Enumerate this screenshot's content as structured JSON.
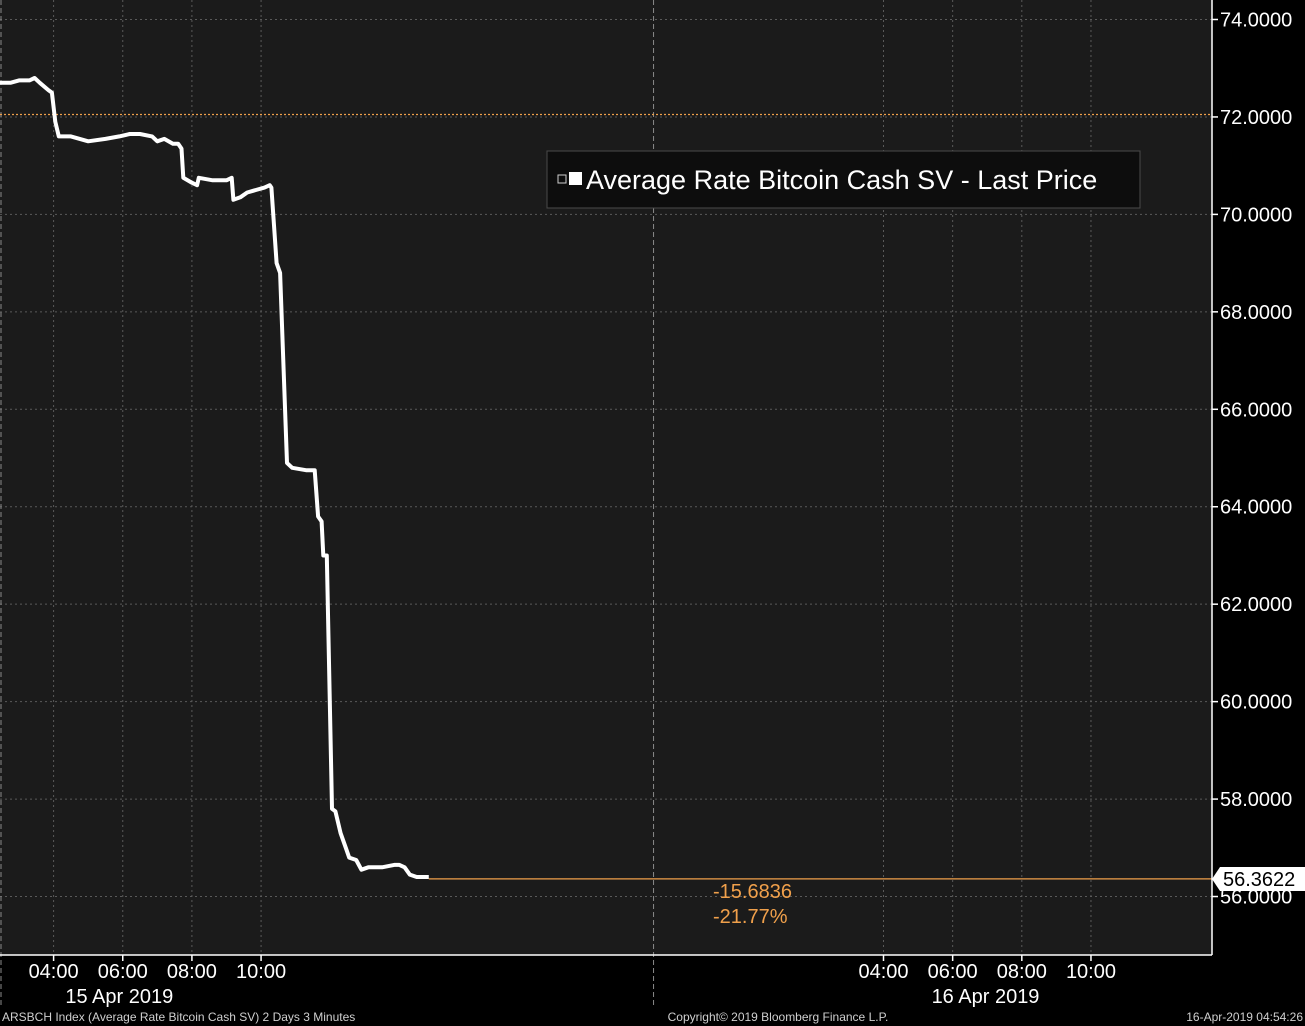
{
  "chart_data": {
    "type": "line",
    "title": "Average Rate Bitcoin Cash SV - Last Price",
    "legend": {
      "label": "Average Rate Bitcoin Cash SV - Last Price",
      "position": "top-right"
    },
    "ylim": [
      54.8,
      74.4
    ],
    "y_ticks": [
      "74.0000",
      "72.0000",
      "70.0000",
      "68.0000",
      "66.0000",
      "64.0000",
      "62.0000",
      "60.0000",
      "58.0000",
      "56.0000"
    ],
    "y_tick_values": [
      74,
      72,
      70,
      68,
      66,
      64,
      62,
      60,
      58,
      56
    ],
    "x_ticks": [
      {
        "label": "04:00",
        "t": 4
      },
      {
        "label": "06:00",
        "t": 6
      },
      {
        "label": "08:00",
        "t": 8
      },
      {
        "label": "10:00",
        "t": 10
      },
      {
        "label": "04:00",
        "t": 28
      },
      {
        "label": "06:00",
        "t": 30
      },
      {
        "label": "08:00",
        "t": 32
      },
      {
        "label": "10:00",
        "t": 34
      }
    ],
    "x_range": [
      2.45,
      37.5
    ],
    "day_divider": 21.35,
    "dates": [
      {
        "label": "15 Apr 2019",
        "t": 5.9
      },
      {
        "label": "16 Apr 2019",
        "t": 30.95
      }
    ],
    "reference_level": 72.05,
    "series": [
      {
        "name": "Average Rate Bitcoin Cash SV - Last Price",
        "color": "#ffffff",
        "points": [
          [
            2.45,
            72.7
          ],
          [
            2.75,
            72.7
          ],
          [
            3.0,
            72.75
          ],
          [
            3.3,
            72.75
          ],
          [
            3.45,
            72.8
          ],
          [
            3.6,
            72.7
          ],
          [
            3.85,
            72.55
          ],
          [
            3.95,
            72.5
          ],
          [
            4.05,
            71.9
          ],
          [
            4.15,
            71.6
          ],
          [
            4.5,
            71.6
          ],
          [
            5.0,
            71.5
          ],
          [
            5.5,
            71.55
          ],
          [
            5.9,
            71.6
          ],
          [
            6.2,
            71.65
          ],
          [
            6.5,
            71.65
          ],
          [
            6.85,
            71.6
          ],
          [
            7.0,
            71.5
          ],
          [
            7.2,
            71.55
          ],
          [
            7.45,
            71.45
          ],
          [
            7.6,
            71.45
          ],
          [
            7.7,
            71.35
          ],
          [
            7.75,
            70.75
          ],
          [
            8.0,
            70.65
          ],
          [
            8.15,
            70.6
          ],
          [
            8.2,
            70.75
          ],
          [
            8.6,
            70.7
          ],
          [
            9.0,
            70.7
          ],
          [
            9.15,
            70.75
          ],
          [
            9.2,
            70.3
          ],
          [
            9.4,
            70.35
          ],
          [
            9.6,
            70.45
          ],
          [
            9.85,
            70.5
          ],
          [
            10.1,
            70.55
          ],
          [
            10.25,
            70.6
          ],
          [
            10.3,
            70.55
          ],
          [
            10.45,
            69.0
          ],
          [
            10.55,
            68.8
          ],
          [
            10.75,
            64.9
          ],
          [
            10.9,
            64.8
          ],
          [
            11.3,
            64.75
          ],
          [
            11.55,
            64.75
          ],
          [
            11.65,
            63.8
          ],
          [
            11.75,
            63.7
          ],
          [
            11.8,
            63.0
          ],
          [
            11.9,
            63.0
          ],
          [
            12.05,
            57.8
          ],
          [
            12.15,
            57.75
          ],
          [
            12.3,
            57.3
          ],
          [
            12.45,
            57.0
          ],
          [
            12.55,
            56.8
          ],
          [
            12.75,
            56.75
          ],
          [
            12.9,
            56.55
          ],
          [
            13.1,
            56.6
          ],
          [
            13.5,
            56.6
          ],
          [
            13.85,
            56.65
          ],
          [
            14.0,
            56.65
          ],
          [
            14.15,
            56.6
          ],
          [
            14.3,
            56.45
          ],
          [
            14.5,
            56.4
          ],
          [
            14.85,
            56.4
          ]
        ]
      }
    ],
    "last_value": "56.3622",
    "last_numeric": 56.3622,
    "annotations": {
      "change": "-15.6836",
      "pct_change": "-21.77%"
    }
  },
  "footer": {
    "left": "ARSBCH Index (Average Rate Bitcoin Cash SV) 2 Days 3 Minutes",
    "center": "Copyright© 2019 Bloomberg Finance L.P.",
    "right": "16-Apr-2019 04:54:26"
  },
  "colors": {
    "background": "#1b1b1b",
    "outer": "#000000",
    "line": "#ffffff",
    "accent": "#f0a04b",
    "grid": "#5a5a5a"
  }
}
